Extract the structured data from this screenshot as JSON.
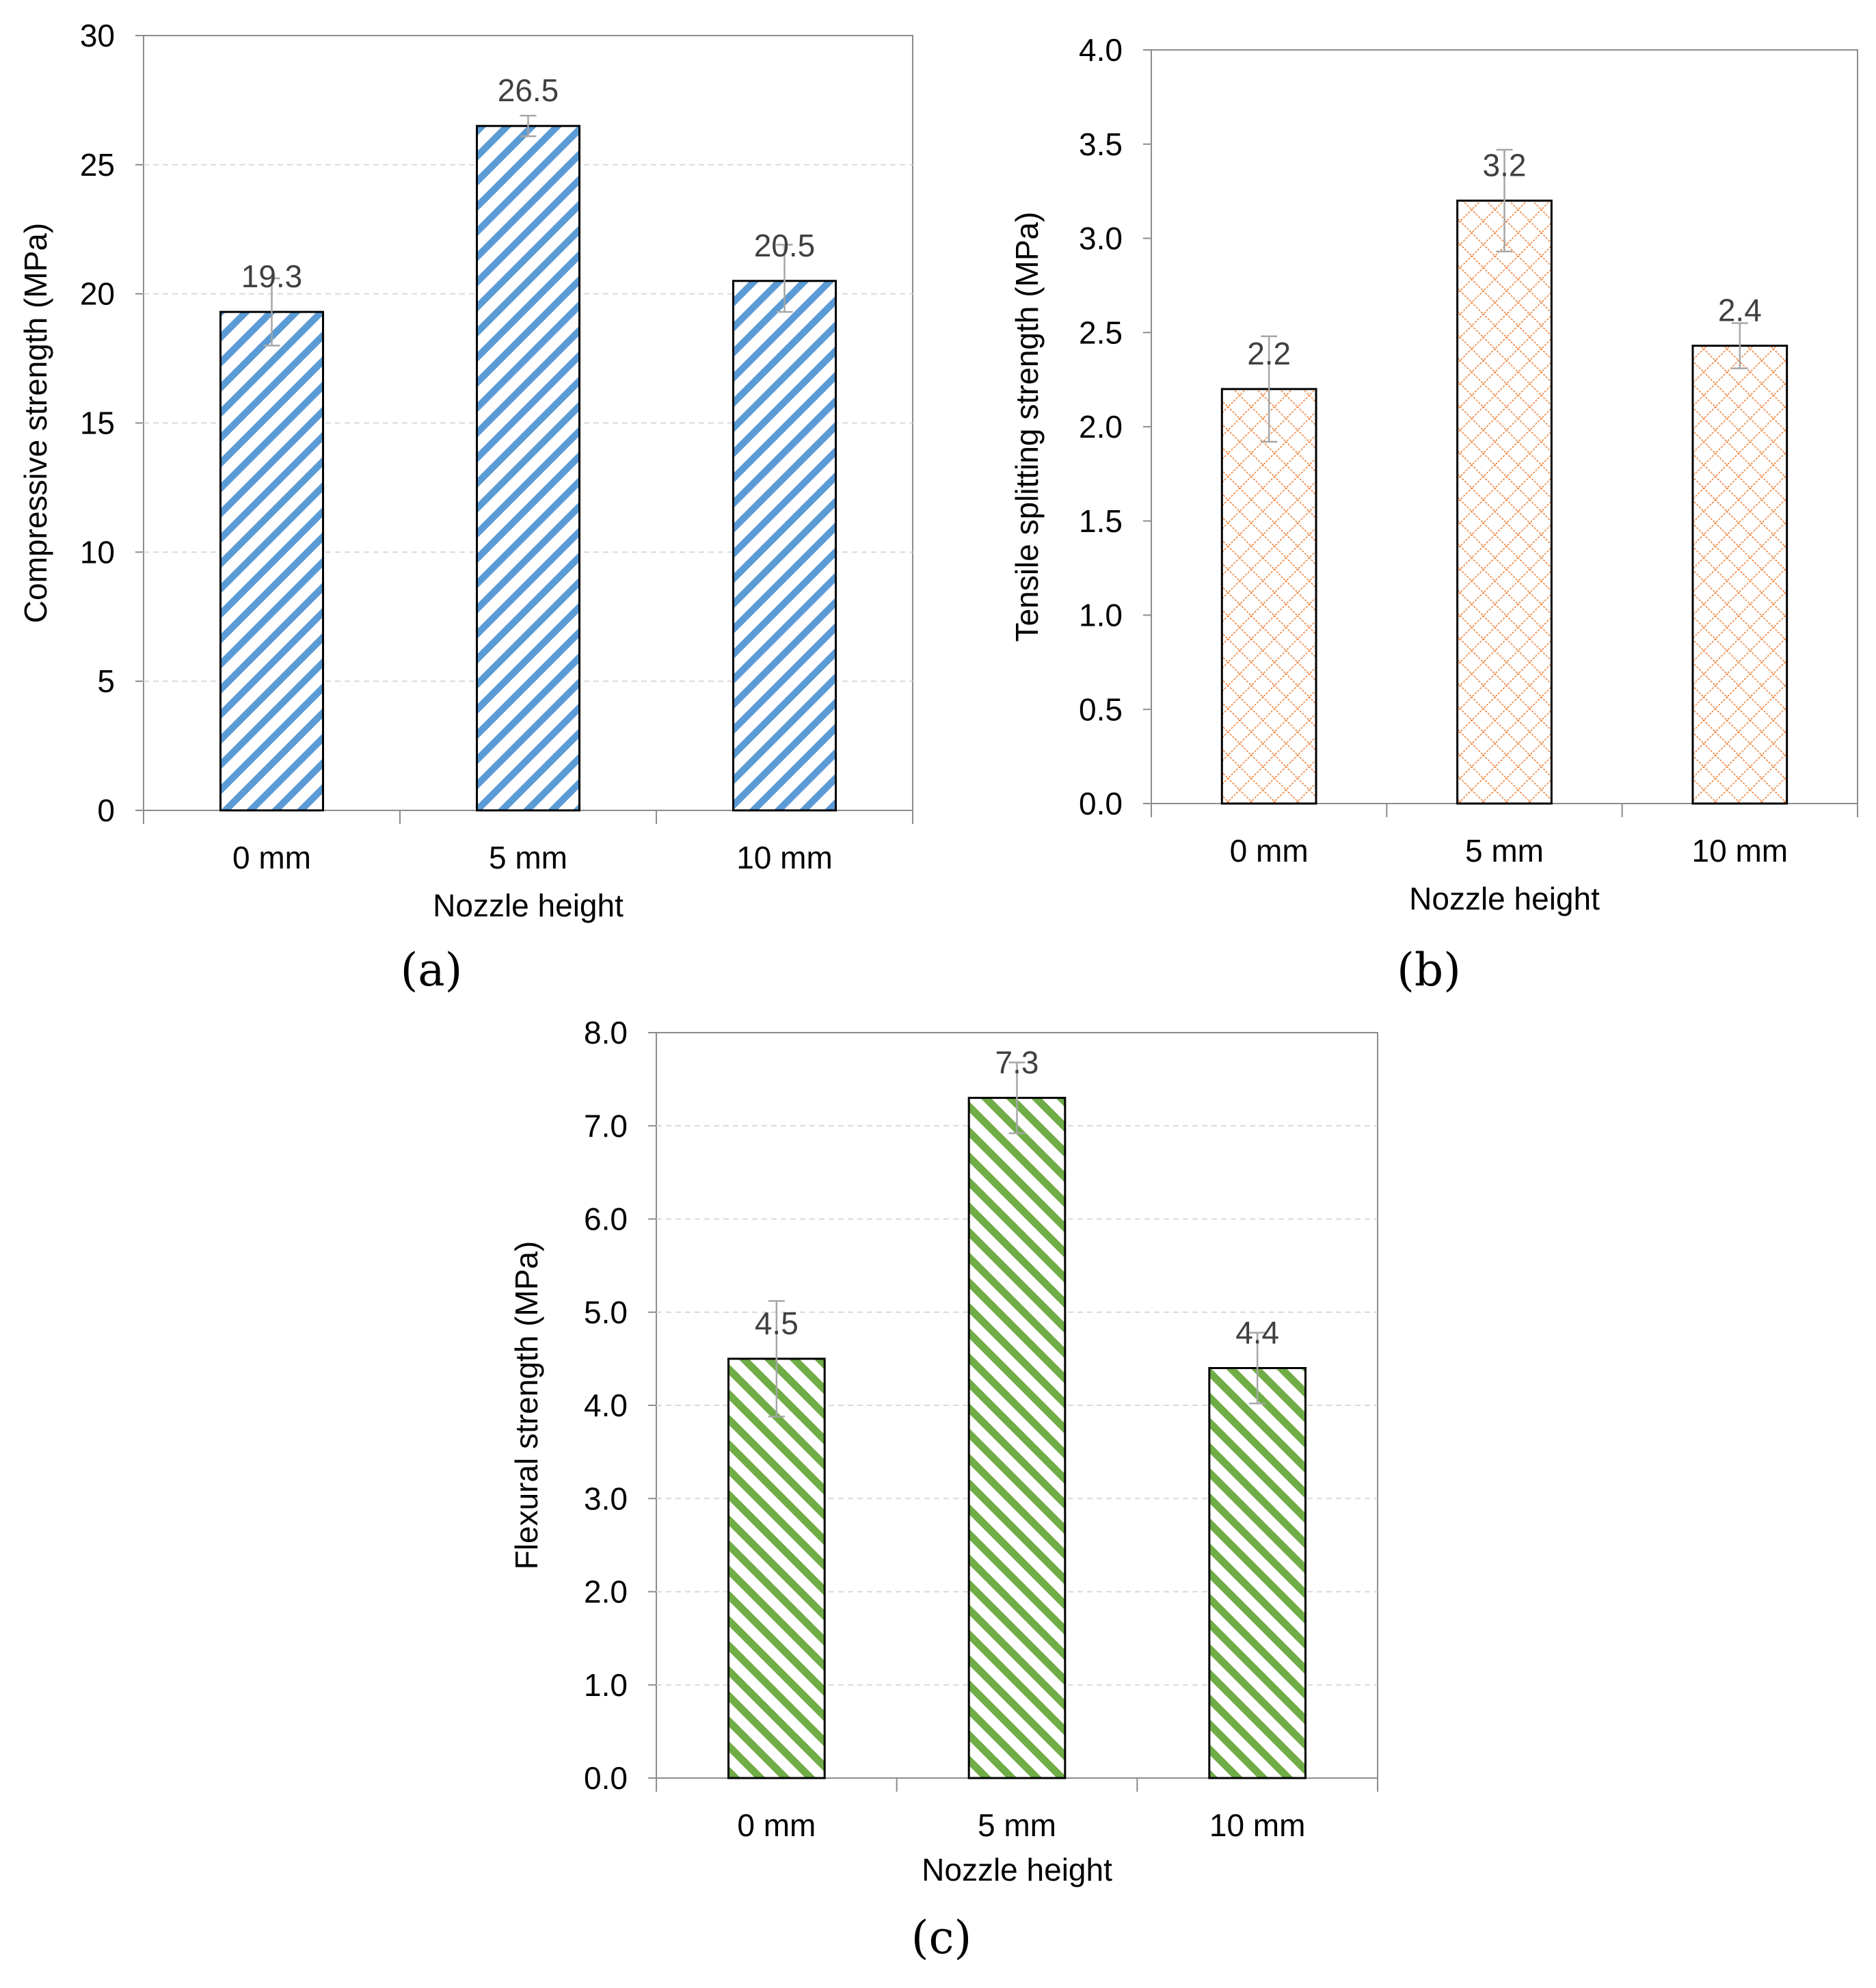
{
  "chart_data": [
    {
      "id": "a",
      "type": "bar",
      "panel_label": "(a)",
      "title": "",
      "xlabel": "Nozzle height",
      "ylabel": "Compressive  strength (MPa)",
      "categories": [
        "0 mm",
        "5 mm",
        "10 mm"
      ],
      "values": [
        19.3,
        26.5,
        20.5
      ],
      "value_labels": [
        "19.3",
        "26.5",
        "20.5"
      ],
      "error_plus": [
        1.3,
        0.4,
        1.4
      ],
      "error_minus": [
        1.3,
        0.4,
        1.2
      ],
      "ylim": [
        0,
        30
      ],
      "yticks": [
        0,
        5,
        10,
        15,
        20,
        25,
        30
      ],
      "ytick_labels": [
        "0",
        "5",
        "10",
        "15",
        "20",
        "25",
        "30"
      ],
      "grid": true,
      "pattern": "diagonal-stripes-up",
      "color": "#5b9bd5"
    },
    {
      "id": "b",
      "type": "bar",
      "panel_label": "(b)",
      "title": "",
      "xlabel": "Nozzle height",
      "ylabel": "Tensile  splitting strength (MPa)",
      "categories": [
        "0 mm",
        "5 mm",
        "10 mm"
      ],
      "values": [
        2.2,
        3.2,
        2.43
      ],
      "value_labels": [
        "2.2",
        "3.2",
        "2.4"
      ],
      "error_plus": [
        0.28,
        0.27,
        0.12
      ],
      "error_minus": [
        0.28,
        0.27,
        0.12
      ],
      "ylim": [
        0,
        4
      ],
      "yticks": [
        0,
        0.5,
        1,
        1.5,
        2,
        2.5,
        3,
        3.5,
        4
      ],
      "ytick_labels": [
        "0.0",
        "0.5",
        "1.0",
        "1.5",
        "2.0",
        "2.5",
        "3.0",
        "3.5",
        "4.0"
      ],
      "grid": false,
      "pattern": "diamond-grid",
      "color": "#ed7d31"
    },
    {
      "id": "c",
      "type": "bar",
      "panel_label": "(c)",
      "title": "",
      "xlabel": "Nozzle height",
      "ylabel": "Flexural strength (MPa)",
      "categories": [
        "0 mm",
        "5 mm",
        "10 mm"
      ],
      "values": [
        4.5,
        7.3,
        4.4
      ],
      "value_labels": [
        "4.5",
        "7.3",
        "4.4"
      ],
      "error_plus": [
        0.62,
        0.38,
        0.38
      ],
      "error_minus": [
        0.62,
        0.38,
        0.38
      ],
      "ylim": [
        0,
        8
      ],
      "yticks": [
        0,
        1,
        2,
        3,
        4,
        5,
        6,
        7,
        8
      ],
      "ytick_labels": [
        "0.0",
        "1.0",
        "2.0",
        "3.0",
        "4.0",
        "5.0",
        "6.0",
        "7.0",
        "8.0"
      ],
      "grid": true,
      "pattern": "diagonal-stripes-down",
      "color": "#70ad47"
    }
  ]
}
